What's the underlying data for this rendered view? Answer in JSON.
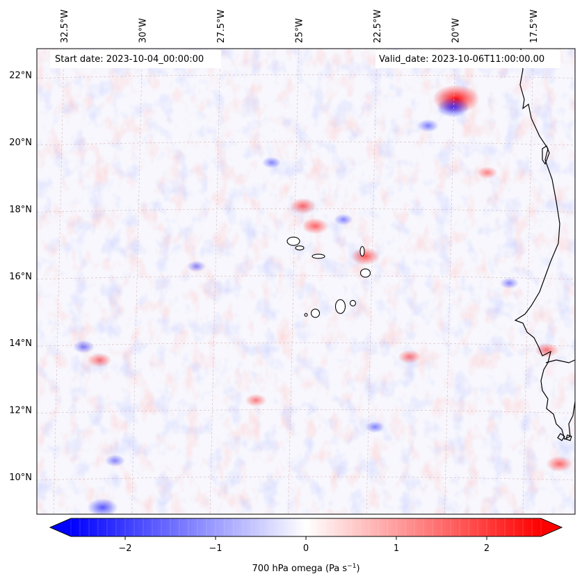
{
  "map": {
    "variable": "700 hPa omega",
    "start_label": "Start date: 2023-10-04_00:00:00",
    "valid_label": "Valid_date: 2023-10-06T11:00:00.00",
    "lon_labels": [
      "32.5°W",
      "30°W",
      "27.5°W",
      "25°W",
      "22.5°W",
      "20°W",
      "17.5°W"
    ],
    "lat_labels": [
      "22°N",
      "20°N",
      "18°N",
      "16°N",
      "14°N",
      "12°N",
      "10°N"
    ],
    "lon_values": [
      -32.5,
      -30,
      -27.5,
      -25,
      -22.5,
      -20,
      -17.5
    ],
    "lat_values": [
      22,
      20,
      18,
      16,
      14,
      12,
      10
    ],
    "extent": {
      "lon_min": -33.3,
      "lon_max": -16.1,
      "lat_min": 8.9,
      "lat_max": 22.8
    }
  },
  "colorbar": {
    "label_main": "700 hPa omega (Pa s",
    "label_sup": "−1",
    "label_tail": ")",
    "min": -2.6,
    "max": 2.6,
    "ticks": [
      -2,
      -1,
      0,
      1,
      2
    ],
    "tick_labels": [
      "−2",
      "−1",
      "0",
      "1",
      "2"
    ],
    "colormap": "bwr"
  },
  "colors": {
    "negative": "#0000ff",
    "neutral": "#ffffff",
    "positive": "#ff0000",
    "coast": "#000000",
    "grid": "#d9b8b8"
  },
  "features": [
    {
      "name": "cabo-verde-santo-antao",
      "lon": -25.1,
      "lat": 17.05
    },
    {
      "name": "cabo-verde-sao-vicente",
      "lon": -24.9,
      "lat": 16.85
    },
    {
      "name": "cabo-verde-sao-nicolau",
      "lon": -24.3,
      "lat": 16.6
    },
    {
      "name": "cabo-verde-sal",
      "lon": -22.9,
      "lat": 16.75
    },
    {
      "name": "cabo-verde-boa-vista",
      "lon": -22.8,
      "lat": 16.1
    },
    {
      "name": "cabo-verde-maio",
      "lon": -23.2,
      "lat": 15.2
    },
    {
      "name": "cabo-verde-santiago",
      "lon": -23.6,
      "lat": 15.1
    },
    {
      "name": "cabo-verde-fogo",
      "lon": -24.4,
      "lat": 14.9
    },
    {
      "name": "cabo-verde-brava",
      "lon": -24.7,
      "lat": 14.85
    }
  ],
  "anomalies": [
    {
      "lon": -19.9,
      "lat": 21.3,
      "value": 2.6
    },
    {
      "lon": -20.0,
      "lat": 21.05,
      "value": -1.5
    },
    {
      "lon": -24.8,
      "lat": 18.1,
      "value": 1.0
    },
    {
      "lon": -24.4,
      "lat": 17.5,
      "value": 1.0
    },
    {
      "lon": -23.5,
      "lat": 17.7,
      "value": -0.4
    },
    {
      "lon": -22.8,
      "lat": 16.6,
      "value": 1.2
    },
    {
      "lon": -31.3,
      "lat": 13.5,
      "value": 0.8
    },
    {
      "lon": -31.8,
      "lat": 13.9,
      "value": -0.6
    },
    {
      "lon": -31.2,
      "lat": 9.1,
      "value": -1.3
    },
    {
      "lon": -30.8,
      "lat": 10.5,
      "value": -0.5
    },
    {
      "lon": -21.4,
      "lat": 13.6,
      "value": 0.7
    },
    {
      "lon": -26.3,
      "lat": 12.3,
      "value": 0.6
    },
    {
      "lon": -28.2,
      "lat": 16.3,
      "value": -0.4
    },
    {
      "lon": -18.9,
      "lat": 19.1,
      "value": 0.5
    },
    {
      "lon": -17.0,
      "lat": 13.8,
      "value": 0.8
    },
    {
      "lon": -16.6,
      "lat": 10.4,
      "value": 1.0
    },
    {
      "lon": -20.8,
      "lat": 20.5,
      "value": -0.6
    },
    {
      "lon": -18.2,
      "lat": 15.8,
      "value": -0.4
    },
    {
      "lon": -25.8,
      "lat": 19.4,
      "value": -0.4
    },
    {
      "lon": -22.5,
      "lat": 11.5,
      "value": -0.4
    }
  ]
}
